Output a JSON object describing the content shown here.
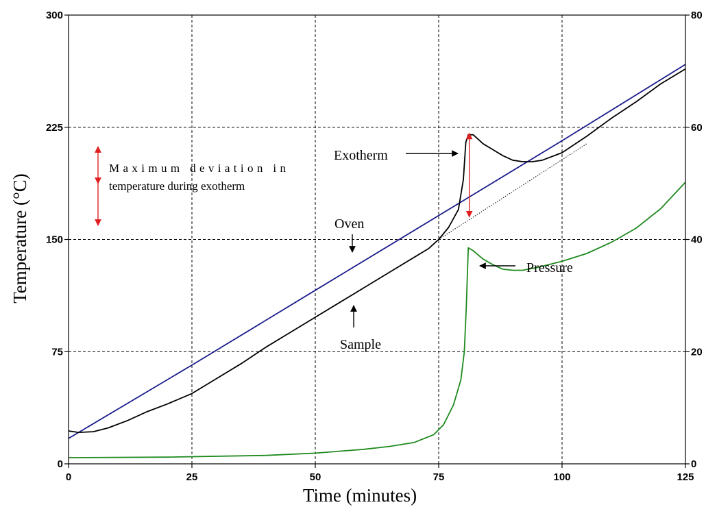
{
  "chart_data": {
    "type": "line",
    "xlabel": "Time (minutes)",
    "ylabel": "Temperature (°C)",
    "ylabel_right": "",
    "xlim": [
      0,
      125
    ],
    "ylim": [
      0,
      300
    ],
    "ylim_right": [
      0,
      80
    ],
    "x_ticks": [
      "0",
      "25",
      "50",
      "75",
      "100",
      "125"
    ],
    "y_ticks": [
      "0",
      "75",
      "150",
      "225",
      "300"
    ],
    "y_ticks_right": [
      "0",
      "20",
      "40",
      "60",
      "80"
    ],
    "grid": true,
    "series": [
      {
        "axis": "left",
        "color": "#1a1a8c",
        "points": [
          [
            0,
            17
          ],
          [
            25,
            66
          ],
          [
            50,
            116
          ],
          [
            75,
            166
          ],
          [
            100,
            216
          ],
          [
            125,
            267
          ]
        ]
      },
      {
        "axis": "left",
        "color": "#000000",
        "points": [
          [
            0,
            22
          ],
          [
            2,
            21
          ],
          [
            5,
            21.5
          ],
          [
            8,
            24
          ],
          [
            12,
            29
          ],
          [
            16,
            35
          ],
          [
            20,
            40
          ],
          [
            25,
            47
          ],
          [
            30,
            57
          ],
          [
            35,
            67
          ],
          [
            40,
            78
          ],
          [
            45,
            88
          ],
          [
            50,
            98
          ],
          [
            55,
            108
          ],
          [
            60,
            118
          ],
          [
            65,
            128
          ],
          [
            70,
            138
          ],
          [
            73,
            144
          ],
          [
            75,
            150
          ],
          [
            77,
            158
          ],
          [
            79,
            170
          ],
          [
            80,
            190
          ],
          [
            80.5,
            215
          ],
          [
            81,
            220
          ],
          [
            82,
            220
          ],
          [
            84,
            214
          ],
          [
            86,
            210
          ],
          [
            88,
            206
          ],
          [
            90,
            203
          ],
          [
            92,
            202
          ],
          [
            94,
            202
          ],
          [
            96,
            203
          ],
          [
            100,
            208
          ],
          [
            105,
            219
          ],
          [
            110,
            231
          ],
          [
            115,
            242
          ],
          [
            120,
            254
          ],
          [
            125,
            264
          ]
        ]
      },
      {
        "axis": "left",
        "color": "#000000",
        "style": "dotted",
        "points": [
          [
            75,
            150
          ],
          [
            105,
            214
          ]
        ]
      },
      {
        "axis": "right",
        "color": "#1e8a1e",
        "points": [
          [
            0,
            1.1
          ],
          [
            20,
            1.2
          ],
          [
            40,
            1.5
          ],
          [
            50,
            1.9
          ],
          [
            60,
            2.6
          ],
          [
            65,
            3.1
          ],
          [
            70,
            3.8
          ],
          [
            74,
            5.2
          ],
          [
            76,
            7
          ],
          [
            78,
            10.5
          ],
          [
            79.5,
            15
          ],
          [
            80.2,
            20
          ],
          [
            80.6,
            28
          ],
          [
            81,
            38.5
          ],
          [
            82,
            38
          ],
          [
            84,
            36.5
          ],
          [
            86,
            35.5
          ],
          [
            88,
            34.7
          ],
          [
            90,
            34.5
          ],
          [
            92,
            34.5
          ],
          [
            95,
            35
          ],
          [
            100,
            36.1
          ],
          [
            105,
            37.5
          ],
          [
            110,
            39.5
          ],
          [
            115,
            42
          ],
          [
            120,
            45.5
          ],
          [
            125,
            50.2
          ]
        ]
      }
    ],
    "annotations": [
      {
        "text": "Exotherm"
      },
      {
        "text": "Oven"
      },
      {
        "text": "Sample"
      },
      {
        "text": "Pressure"
      },
      {
        "line1": "Maximum deviation in",
        "line2": "temperature during exotherm"
      }
    ]
  }
}
